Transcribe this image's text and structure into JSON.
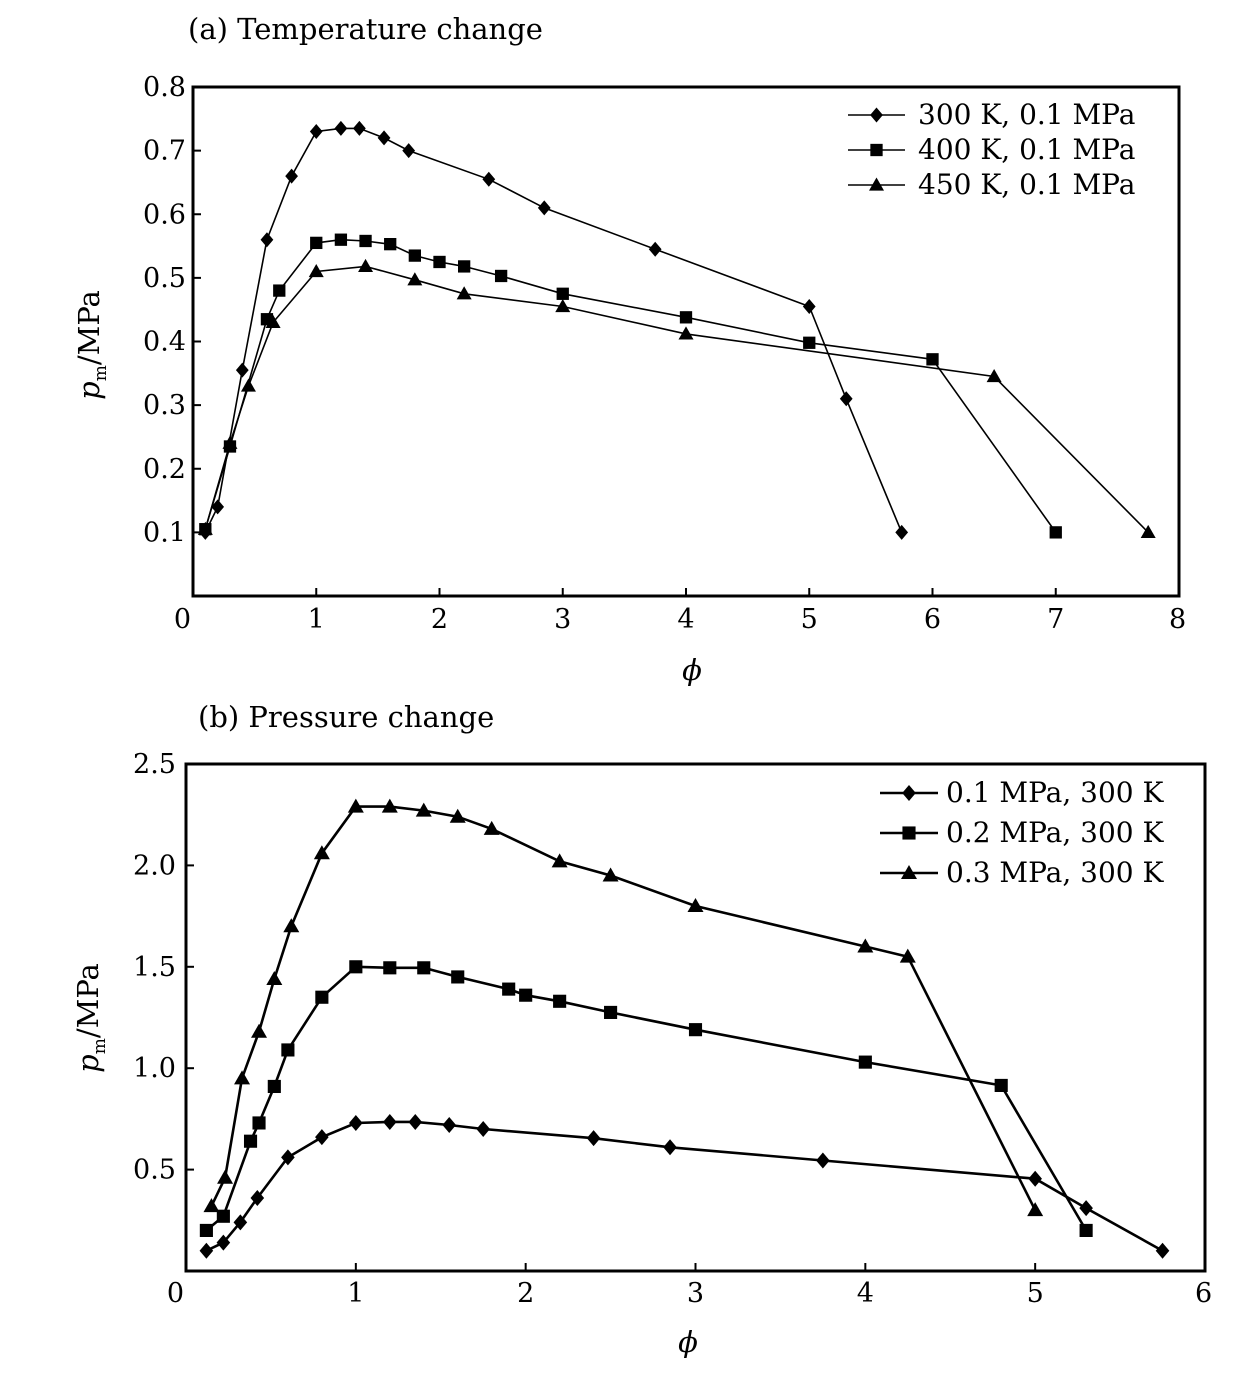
{
  "chart_data": [
    {
      "type": "line",
      "title": "(a)  Temperature change",
      "xlabel": "ϕ",
      "ylabel": "p_m/MPa",
      "ylabel_main": "p",
      "ylabel_sub": "m",
      "ylabel_rest": "/MPa",
      "xlim": [
        0,
        8
      ],
      "ylim": [
        0,
        0.8
      ],
      "xticks": [
        0,
        1,
        2,
        3,
        4,
        5,
        6,
        7,
        8
      ],
      "xtick_labels": [
        "0",
        "1",
        "2",
        "3",
        "4",
        "5",
        "6",
        "7",
        "8"
      ],
      "yticks": [
        0.1,
        0.2,
        0.3,
        0.4,
        0.5,
        0.6,
        0.7,
        0.8
      ],
      "ytick_labels": [
        "0.1",
        "0.2",
        "0.3",
        "0.4",
        "0.5",
        "0.6",
        "0.7",
        "0.8"
      ],
      "legend_position": "top-right",
      "grid": false,
      "series": [
        {
          "name": "300 K, 0.1 MPa",
          "marker": "diamond",
          "x": [
            0.1,
            0.2,
            0.4,
            0.6,
            0.8,
            1.0,
            1.2,
            1.35,
            1.55,
            1.75,
            2.4,
            2.85,
            3.75,
            5.0,
            5.3,
            5.75
          ],
          "y": [
            0.1,
            0.14,
            0.355,
            0.56,
            0.66,
            0.73,
            0.735,
            0.735,
            0.72,
            0.7,
            0.655,
            0.61,
            0.545,
            0.455,
            0.31,
            0.1
          ]
        },
        {
          "name": "400 K, 0.1 MPa",
          "marker": "square",
          "x": [
            0.1,
            0.3,
            0.6,
            0.7,
            1.0,
            1.2,
            1.4,
            1.6,
            1.8,
            2.0,
            2.2,
            2.5,
            3.0,
            4.0,
            5.0,
            6.0,
            7.0
          ],
          "y": [
            0.105,
            0.235,
            0.435,
            0.48,
            0.555,
            0.56,
            0.558,
            0.553,
            0.535,
            0.525,
            0.518,
            0.503,
            0.475,
            0.438,
            0.398,
            0.372,
            0.1
          ]
        },
        {
          "name": "450 K, 0.1 MPa",
          "marker": "triangle",
          "x": [
            0.1,
            0.3,
            0.45,
            0.65,
            1.0,
            1.4,
            1.8,
            2.2,
            3.0,
            4.0,
            6.5,
            7.75
          ],
          "y": [
            0.105,
            0.24,
            0.33,
            0.43,
            0.51,
            0.518,
            0.497,
            0.475,
            0.455,
            0.412,
            0.345,
            0.1
          ]
        }
      ]
    },
    {
      "type": "line",
      "title": "(b) Pressure change",
      "xlabel": "ϕ",
      "ylabel": "p_m/MPa",
      "ylabel_main": "p",
      "ylabel_sub": "m",
      "ylabel_rest": "/MPa",
      "xlim": [
        0,
        6
      ],
      "ylim": [
        0,
        2.5
      ],
      "xticks": [
        0,
        1,
        2,
        3,
        4,
        5,
        6
      ],
      "xtick_labels": [
        "0",
        "1",
        "2",
        "3",
        "4",
        "5",
        "6"
      ],
      "yticks": [
        0.5,
        1.0,
        1.5,
        2.0,
        2.5
      ],
      "ytick_labels": [
        "0.5",
        "1.0",
        "1.5",
        "2.0",
        "2.5"
      ],
      "legend_position": "top-right",
      "grid": false,
      "series": [
        {
          "name": "0.1 MPa, 300 K",
          "marker": "diamond",
          "x": [
            0.12,
            0.22,
            0.32,
            0.42,
            0.6,
            0.8,
            1.0,
            1.2,
            1.35,
            1.55,
            1.75,
            2.4,
            2.85,
            3.75,
            5.0,
            5.3,
            5.75
          ],
          "y": [
            0.1,
            0.14,
            0.24,
            0.36,
            0.56,
            0.66,
            0.73,
            0.735,
            0.735,
            0.72,
            0.7,
            0.655,
            0.61,
            0.545,
            0.455,
            0.31,
            0.1
          ]
        },
        {
          "name": "0.2 MPa, 300 K",
          "marker": "square",
          "x": [
            0.12,
            0.22,
            0.38,
            0.43,
            0.52,
            0.6,
            0.8,
            1.0,
            1.2,
            1.4,
            1.6,
            1.9,
            2.0,
            2.2,
            2.5,
            3.0,
            4.0,
            4.8,
            5.3
          ],
          "y": [
            0.2,
            0.27,
            0.64,
            0.73,
            0.91,
            1.09,
            1.35,
            1.5,
            1.495,
            1.495,
            1.45,
            1.39,
            1.36,
            1.33,
            1.275,
            1.19,
            1.03,
            0.915,
            0.2
          ]
        },
        {
          "name": "0.3 MPa, 300 K",
          "marker": "triangle",
          "x": [
            0.15,
            0.23,
            0.33,
            0.43,
            0.52,
            0.62,
            0.8,
            1.0,
            1.2,
            1.4,
            1.6,
            1.8,
            2.2,
            2.5,
            3.0,
            4.0,
            4.25,
            5.0
          ],
          "y": [
            0.32,
            0.46,
            0.95,
            1.18,
            1.44,
            1.7,
            2.06,
            2.29,
            2.29,
            2.27,
            2.24,
            2.18,
            2.02,
            1.95,
            1.8,
            1.6,
            1.55,
            0.3
          ]
        }
      ]
    }
  ]
}
